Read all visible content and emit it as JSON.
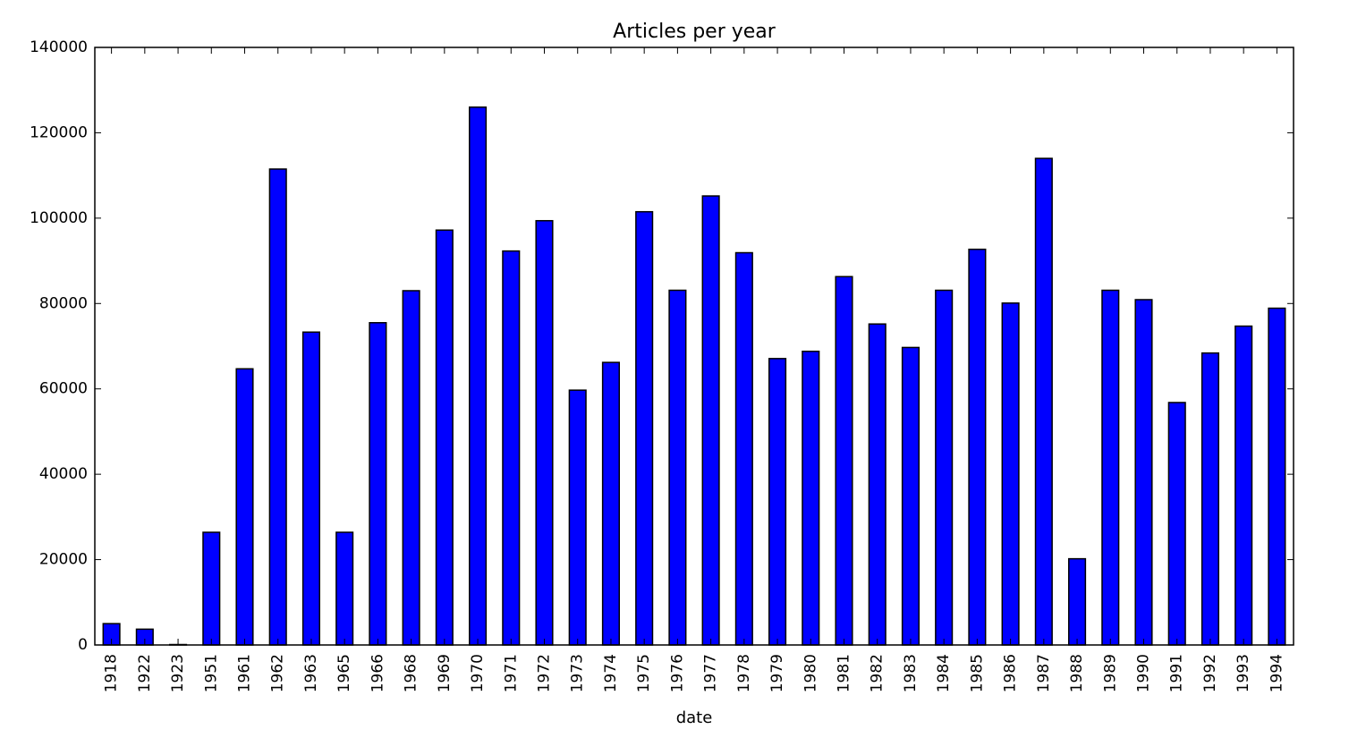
{
  "chart_data": {
    "type": "bar",
    "title": "Articles per year",
    "xlabel": "date",
    "ylabel": "",
    "ylim": [
      0,
      140000
    ],
    "yticks": [
      0,
      20000,
      40000,
      60000,
      80000,
      100000,
      120000,
      140000
    ],
    "ytick_labels": [
      "0",
      "20000",
      "40000",
      "60000",
      "80000",
      "100000",
      "120000",
      "140000"
    ],
    "grid": false,
    "bar_color": "#0000ff",
    "categories": [
      "1918",
      "1922",
      "1923",
      "1951",
      "1961",
      "1962",
      "1963",
      "1965",
      "1966",
      "1968",
      "1969",
      "1970",
      "1971",
      "1972",
      "1973",
      "1974",
      "1975",
      "1976",
      "1977",
      "1978",
      "1979",
      "1980",
      "1981",
      "1982",
      "1983",
      "1984",
      "1985",
      "1986",
      "1987",
      "1988",
      "1989",
      "1990",
      "1991",
      "1992",
      "1993",
      "1994"
    ],
    "values": [
      5000,
      3700,
      100,
      26400,
      64700,
      111500,
      73300,
      26400,
      75500,
      83000,
      97200,
      126000,
      92300,
      99400,
      59700,
      66200,
      101500,
      83100,
      105200,
      91900,
      67100,
      68800,
      86300,
      75200,
      69700,
      83100,
      92700,
      80100,
      114000,
      20200,
      83100,
      80900,
      56800,
      68400,
      74700,
      78900
    ]
  }
}
